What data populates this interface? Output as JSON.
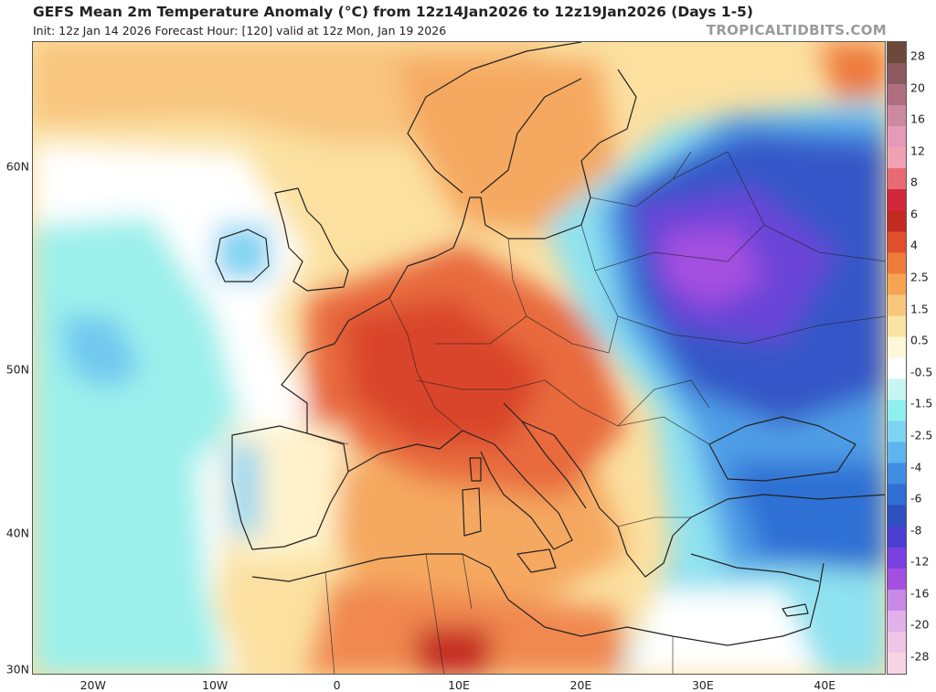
{
  "header": {
    "title": "GEFS Mean 2m Temperature Anomaly (°C) from 12z14Jan2026 to 12z19Jan2026 (Days 1-5)",
    "subtitle": "Init: 12z Jan 14 2026   Forecast Hour: [120]   valid at 12z Mon, Jan 19 2026",
    "credit": "TROPICALTIDBITS.COM"
  },
  "map": {
    "lon_range": [
      -25,
      45
    ],
    "lat_range": [
      30,
      65
    ],
    "lat_ticks": [
      {
        "value": 60,
        "label": "60N"
      },
      {
        "value": 50,
        "label": "50N"
      },
      {
        "value": 40,
        "label": "40N"
      },
      {
        "value": 30,
        "label": "30N"
      }
    ],
    "lon_ticks": [
      {
        "value": -20,
        "label": "20W"
      },
      {
        "value": -10,
        "label": "10W"
      },
      {
        "value": 0,
        "label": "0"
      },
      {
        "value": 10,
        "label": "10E"
      },
      {
        "value": 20,
        "label": "20E"
      },
      {
        "value": 30,
        "label": "30E"
      },
      {
        "value": 40,
        "label": "40E"
      }
    ],
    "anomaly_regions": [
      {
        "region": "Eastern Europe / Belarus",
        "approx_anomaly": -12,
        "color": "#a44fe0"
      },
      {
        "region": "Western Russia",
        "approx_anomaly": -8,
        "color": "#5a3fd6"
      },
      {
        "region": "Ukraine / Romania",
        "approx_anomaly": -6,
        "color": "#2f5fd0"
      },
      {
        "region": "Turkey",
        "approx_anomaly": -4,
        "color": "#2f74d8"
      },
      {
        "region": "France / Germany",
        "approx_anomaly": 4,
        "color": "#e0502a"
      },
      {
        "region": "Italy / Adriatic",
        "approx_anomaly": 4,
        "color": "#d9452a"
      },
      {
        "region": "Mediterranean",
        "approx_anomaly": 2.5,
        "color": "#f5a860"
      },
      {
        "region": "Atlantic west of Iberia",
        "approx_anomaly": -1,
        "color": "#8ef0ee"
      },
      {
        "region": "Scandinavia",
        "approx_anomaly": 2,
        "color": "#f7c07c"
      }
    ]
  },
  "colorbar": {
    "labels": [
      "28",
      "20",
      "16",
      "12",
      "8",
      "6",
      "4",
      "2.5",
      "1.5",
      "0.5",
      "-0.5",
      "-1.5",
      "-2.5",
      "-4",
      "-6",
      "-8",
      "-12",
      "-16",
      "-20",
      "-28"
    ],
    "colors": [
      "#6b4a3c",
      "#8a5a5e",
      "#b06f80",
      "#cc8aa2",
      "#e79ab8",
      "#f0a2b3",
      "#e86a74",
      "#d3283a",
      "#c42a24",
      "#e0502a",
      "#ee7a3c",
      "#f7a452",
      "#f8c67c",
      "#fbe3a4",
      "#fff7d9",
      "#ffffff",
      "#c8f5f2",
      "#8ef0ee",
      "#7ed3f2",
      "#5eb4ec",
      "#3f8ee2",
      "#2f6fd4",
      "#2f50c0",
      "#4a3fd0",
      "#7a40e0",
      "#a44fe0",
      "#c88ae6",
      "#e2b0ea",
      "#f0c6e6",
      "#f6d4e4"
    ]
  }
}
